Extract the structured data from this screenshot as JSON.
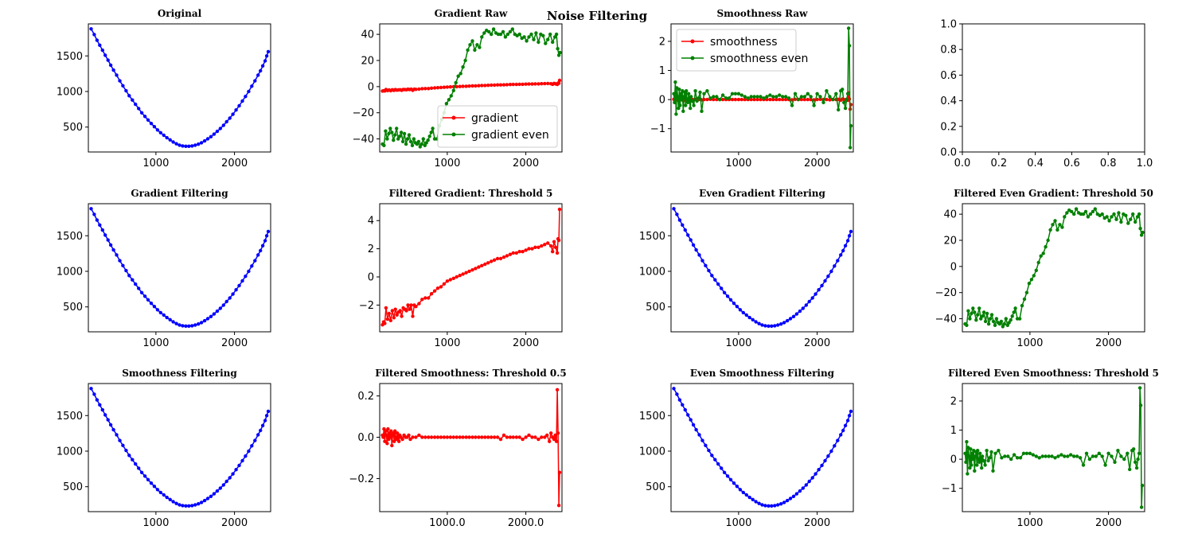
{
  "figure": {
    "title": "Noise Filtering"
  },
  "chart_data": [
    {
      "id": "original",
      "type": "line",
      "title": "Original",
      "xlim": [
        140,
        2460
      ],
      "ylim": [
        150,
        1950
      ],
      "xticks": [
        1000,
        2000
      ],
      "yticks": [
        500,
        1000,
        1500
      ],
      "series": [
        {
          "color": "#0000ff",
          "shape": "parabola"
        }
      ]
    },
    {
      "id": "gradient-raw",
      "type": "line",
      "title": "Gradient Raw",
      "xlim": [
        140,
        2460
      ],
      "ylim": [
        -50,
        48
      ],
      "xticks": [
        1000,
        2000
      ],
      "yticks": [
        -40,
        -20,
        0,
        20,
        40
      ],
      "legend": "lower-right",
      "series": [
        {
          "name": "gradient",
          "color": "#ff0000",
          "shape": "gradient"
        },
        {
          "name": "gradient even",
          "color": "#008000",
          "shape": "gradient_even"
        }
      ]
    },
    {
      "id": "smoothness-raw",
      "type": "line",
      "title": "Smoothness Raw",
      "xlim": [
        140,
        2460
      ],
      "ylim": [
        -1.8,
        2.6
      ],
      "xticks": [
        1000,
        2000
      ],
      "yticks": [
        -1,
        0,
        1,
        2
      ],
      "legend": "upper-left",
      "series": [
        {
          "name": "smoothness",
          "color": "#ff0000",
          "shape": "smooth_small"
        },
        {
          "name": "smoothness even",
          "color": "#008000",
          "shape": "smooth_even"
        }
      ]
    },
    {
      "id": "empty",
      "type": "line",
      "title": "",
      "xlim": [
        0,
        1
      ],
      "ylim": [
        0,
        1
      ],
      "xticks": [
        0.0,
        0.2,
        0.4,
        0.6,
        0.8,
        1.0
      ],
      "yticks": [
        0.0,
        0.2,
        0.4,
        0.6,
        0.8,
        1.0
      ],
      "tickFormat": "1",
      "series": []
    },
    {
      "id": "gradient-filtering",
      "type": "line",
      "title": "Gradient Filtering",
      "xlim": [
        140,
        2460
      ],
      "ylim": [
        150,
        1950
      ],
      "xticks": [
        1000,
        2000
      ],
      "yticks": [
        500,
        1000,
        1500
      ],
      "series": [
        {
          "color": "#0000ff",
          "shape": "parabola"
        }
      ]
    },
    {
      "id": "filtered-gradient",
      "type": "line",
      "title": "Filtered Gradient: Threshold 5",
      "xlim": [
        140,
        2460
      ],
      "ylim": [
        -3.9,
        5.2
      ],
      "xticks": [
        1000,
        2000
      ],
      "yticks": [
        -2,
        0,
        2,
        4
      ],
      "series": [
        {
          "color": "#ff0000",
          "shape": "gradient"
        }
      ]
    },
    {
      "id": "even-gradient-filtering",
      "type": "line",
      "title": "Even Gradient Filtering",
      "xlim": [
        140,
        2460
      ],
      "ylim": [
        150,
        1950
      ],
      "xticks": [
        1000,
        2000
      ],
      "yticks": [
        500,
        1000,
        1500
      ],
      "series": [
        {
          "color": "#0000ff",
          "shape": "parabola"
        }
      ]
    },
    {
      "id": "filtered-even-gradient",
      "type": "line",
      "title": "Filtered Even Gradient: Threshold 50",
      "xlim": [
        140,
        2460
      ],
      "ylim": [
        -50,
        48
      ],
      "xticks": [
        1000,
        2000
      ],
      "yticks": [
        -40,
        -20,
        0,
        20,
        40
      ],
      "series": [
        {
          "color": "#008000",
          "shape": "gradient_even"
        }
      ]
    },
    {
      "id": "smoothness-filtering",
      "type": "line",
      "title": "Smoothness Filtering",
      "xlim": [
        140,
        2460
      ],
      "ylim": [
        150,
        1950
      ],
      "xticks": [
        1000,
        2000
      ],
      "yticks": [
        500,
        1000,
        1500
      ],
      "series": [
        {
          "color": "#0000ff",
          "shape": "parabola"
        }
      ]
    },
    {
      "id": "filtered-smoothness",
      "type": "line",
      "title": "Filtered Smoothness: Threshold 0.5",
      "xlim": [
        140,
        2460
      ],
      "ylim": [
        -0.36,
        0.26
      ],
      "xticks": [
        1000,
        2000
      ],
      "yticks": [
        -0.2,
        0.0,
        0.2
      ],
      "tickFormat": "1",
      "series": [
        {
          "color": "#ff0000",
          "shape": "smooth_small"
        }
      ]
    },
    {
      "id": "even-smoothness-filtering",
      "type": "line",
      "title": "Even Smoothness Filtering",
      "xlim": [
        140,
        2460
      ],
      "ylim": [
        150,
        1950
      ],
      "xticks": [
        1000,
        2000
      ],
      "yticks": [
        500,
        1000,
        1500
      ],
      "series": [
        {
          "color": "#0000ff",
          "shape": "parabola"
        }
      ]
    },
    {
      "id": "filtered-even-smoothness",
      "type": "line",
      "title": "Filtered Even Smoothness: Threshold 5",
      "xlim": [
        140,
        2460
      ],
      "ylim": [
        -1.8,
        2.6
      ],
      "xticks": [
        1000,
        2000
      ],
      "yticks": [
        -1,
        0,
        1,
        2
      ],
      "series": [
        {
          "color": "#008000",
          "shape": "smooth_even"
        }
      ]
    }
  ],
  "series_points": {
    "parabola": {
      "x": [
        175,
        215,
        250,
        285,
        320,
        355,
        390,
        425,
        460,
        500,
        540,
        580,
        620,
        660,
        700,
        740,
        780,
        820,
        860,
        900,
        940,
        980,
        1020,
        1060,
        1100,
        1140,
        1180,
        1220,
        1260,
        1300,
        1340,
        1380,
        1420,
        1460,
        1500,
        1540,
        1580,
        1620,
        1660,
        1700,
        1740,
        1780,
        1820,
        1860,
        1900,
        1940,
        1980,
        2020,
        2060,
        2100,
        2140,
        2180,
        2220,
        2260,
        2300,
        2330,
        2360,
        2390,
        2410,
        2430
      ],
      "y": [
        1880,
        1800,
        1720,
        1650,
        1580,
        1510,
        1440,
        1370,
        1300,
        1230,
        1150,
        1080,
        1010,
        940,
        880,
        820,
        760,
        700,
        650,
        600,
        550,
        505,
        460,
        420,
        385,
        350,
        320,
        290,
        265,
        245,
        235,
        230,
        230,
        235,
        245,
        260,
        280,
        305,
        335,
        365,
        400,
        440,
        480,
        525,
        575,
        625,
        680,
        740,
        800,
        865,
        930,
        1000,
        1075,
        1150,
        1230,
        1290,
        1360,
        1430,
        1500,
        1560
      ]
    },
    "gradient": {
      "x": [
        175,
        190,
        205,
        220,
        240,
        260,
        280,
        300,
        320,
        340,
        360,
        380,
        400,
        420,
        440,
        460,
        480,
        500,
        520,
        540,
        560,
        580,
        600,
        640,
        680,
        720,
        760,
        800,
        840,
        880,
        920,
        960,
        1000,
        1040,
        1080,
        1120,
        1160,
        1200,
        1240,
        1280,
        1320,
        1360,
        1400,
        1440,
        1480,
        1520,
        1560,
        1600,
        1640,
        1680,
        1720,
        1760,
        1800,
        1840,
        1880,
        1920,
        1960,
        2000,
        2040,
        2080,
        2120,
        2160,
        2200,
        2240,
        2280,
        2320,
        2340,
        2360,
        2380,
        2400,
        2410,
        2420,
        2430
      ],
      "y": [
        -3.4,
        -3.2,
        -3.3,
        -2.2,
        -3.0,
        -2.6,
        -3.1,
        -2.4,
        -2.9,
        -2.3,
        -2.7,
        -2.5,
        -2.4,
        -2.8,
        -2.2,
        -2.3,
        -2.4,
        -2.0,
        -2.3,
        -2.0,
        -2.8,
        -2.0,
        -2.1,
        -1.9,
        -1.6,
        -1.5,
        -1.5,
        -1.2,
        -1.0,
        -0.8,
        -0.7,
        -0.5,
        -0.3,
        -0.2,
        -0.1,
        0.0,
        0.1,
        0.2,
        0.3,
        0.4,
        0.5,
        0.6,
        0.7,
        0.8,
        0.9,
        1.0,
        1.1,
        1.2,
        1.3,
        1.3,
        1.4,
        1.5,
        1.6,
        1.7,
        1.7,
        1.8,
        1.8,
        1.9,
        2.0,
        2.0,
        2.1,
        2.1,
        2.2,
        2.3,
        2.4,
        2.2,
        1.8,
        2.5,
        2.1,
        1.7,
        2.7,
        2.6,
        4.8
      ]
    },
    "gradient_even": {
      "x": [
        175,
        195,
        215,
        235,
        255,
        275,
        295,
        315,
        335,
        355,
        375,
        395,
        415,
        435,
        455,
        475,
        495,
        515,
        535,
        555,
        575,
        595,
        615,
        635,
        655,
        675,
        695,
        715,
        735,
        755,
        775,
        795,
        815,
        840,
        870,
        900,
        930,
        960,
        990,
        1020,
        1050,
        1080,
        1110,
        1140,
        1170,
        1200,
        1230,
        1260,
        1290,
        1320,
        1350,
        1380,
        1410,
        1440,
        1470,
        1500,
        1530,
        1560,
        1590,
        1620,
        1650,
        1680,
        1710,
        1740,
        1770,
        1800,
        1830,
        1860,
        1890,
        1920,
        1950,
        1980,
        2010,
        2040,
        2070,
        2100,
        2130,
        2160,
        2190,
        2220,
        2250,
        2280,
        2310,
        2340,
        2370,
        2390,
        2405,
        2420,
        2435
      ],
      "y": [
        -44,
        -45,
        -34,
        -40,
        -36,
        -32,
        -35,
        -41,
        -37,
        -32,
        -40,
        -38,
        -35,
        -42,
        -36,
        -44,
        -40,
        -37,
        -42,
        -45,
        -40,
        -43,
        -44,
        -42,
        -46,
        -44,
        -40,
        -45,
        -43,
        -41,
        -38,
        -35,
        -32,
        -40,
        -40,
        -30,
        -25,
        -20,
        -13,
        -10,
        -7,
        -3,
        3,
        8,
        10,
        15,
        20,
        28,
        32,
        35,
        28,
        32,
        30,
        38,
        41,
        43,
        42,
        40,
        44,
        41,
        40,
        40,
        42,
        38,
        40,
        42,
        44,
        40,
        39,
        40,
        37,
        38,
        35,
        38,
        40,
        36,
        41,
        34,
        40,
        39,
        33,
        36,
        40,
        34,
        38,
        40,
        29,
        24,
        26
      ]
    },
    "smooth_small": {
      "x": [
        175,
        185,
        195,
        205,
        215,
        225,
        235,
        245,
        255,
        265,
        275,
        285,
        295,
        305,
        315,
        325,
        335,
        345,
        355,
        365,
        375,
        385,
        395,
        410,
        430,
        450,
        470,
        490,
        510,
        530,
        560,
        600,
        640,
        680,
        720,
        760,
        800,
        840,
        880,
        920,
        960,
        1000,
        1040,
        1080,
        1120,
        1160,
        1200,
        1240,
        1280,
        1320,
        1360,
        1400,
        1440,
        1480,
        1520,
        1560,
        1600,
        1640,
        1680,
        1720,
        1760,
        1800,
        1840,
        1880,
        1920,
        1960,
        2000,
        2040,
        2080,
        2120,
        2160,
        2200,
        2240,
        2270,
        2300,
        2320,
        2340,
        2360,
        2375,
        2390,
        2400,
        2410,
        2420,
        2430
      ],
      "y": [
        0.01,
        0.0,
        0.04,
        -0.02,
        0.03,
        0.01,
        -0.03,
        0.04,
        -0.01,
        0.02,
        0.0,
        0.03,
        -0.04,
        0.01,
        0.02,
        -0.02,
        0.03,
        0.0,
        -0.01,
        0.02,
        0.0,
        -0.02,
        0.01,
        0.0,
        -0.01,
        0.01,
        0.0,
        0.0,
        0.01,
        -0.01,
        0.0,
        0.0,
        0.01,
        0.0,
        0.0,
        0.0,
        0.0,
        0.0,
        0.0,
        0.0,
        0.0,
        0.0,
        0.0,
        0.0,
        0.0,
        0.0,
        0.0,
        0.0,
        0.0,
        0.0,
        0.0,
        0.0,
        0.0,
        0.0,
        0.0,
        0.0,
        0.0,
        0.0,
        -0.01,
        0.01,
        0.0,
        0.0,
        0.0,
        0.0,
        0.0,
        -0.01,
        0.0,
        0.01,
        0.0,
        0.0,
        -0.01,
        0.0,
        0.0,
        0.01,
        -0.02,
        0.02,
        0.0,
        -0.01,
        0.01,
        -0.02,
        0.23,
        0.02,
        -0.33,
        -0.17
      ]
    },
    "smooth_even": {
      "x": [
        175,
        185,
        195,
        205,
        215,
        225,
        235,
        245,
        255,
        265,
        275,
        285,
        295,
        305,
        315,
        325,
        335,
        345,
        355,
        365,
        375,
        385,
        395,
        410,
        430,
        450,
        470,
        490,
        510,
        530,
        560,
        600,
        640,
        680,
        720,
        760,
        800,
        840,
        880,
        920,
        960,
        1000,
        1040,
        1080,
        1120,
        1160,
        1200,
        1240,
        1280,
        1320,
        1360,
        1400,
        1440,
        1480,
        1520,
        1560,
        1600,
        1640,
        1680,
        1720,
        1760,
        1800,
        1840,
        1880,
        1920,
        1960,
        2000,
        2040,
        2080,
        2120,
        2160,
        2200,
        2240,
        2270,
        2300,
        2320,
        2340,
        2360,
        2375,
        2390,
        2400,
        2410,
        2420,
        2430
      ],
      "y": [
        0.2,
        -0.1,
        0.6,
        -0.5,
        0.4,
        0.1,
        -0.3,
        0.35,
        -0.2,
        0.2,
        0.0,
        0.3,
        -0.4,
        0.1,
        0.25,
        -0.2,
        0.3,
        0.0,
        -0.1,
        0.2,
        0.0,
        -0.3,
        0.1,
        -0.05,
        -0.2,
        0.3,
        -0.05,
        0.05,
        0.25,
        -0.4,
        0.2,
        0.3,
        0.05,
        0.1,
        0.1,
        0.0,
        0.15,
        0.05,
        0.05,
        0.2,
        0.2,
        0.2,
        0.15,
        0.1,
        0.05,
        0.1,
        0.1,
        0.1,
        0.1,
        0.05,
        0.1,
        0.15,
        0.1,
        0.1,
        0.15,
        0.1,
        0.1,
        0.05,
        -0.2,
        0.2,
        0.0,
        0.1,
        0.1,
        0.2,
        0.1,
        -0.2,
        0.2,
        0.1,
        -0.1,
        0.3,
        0.1,
        0.0,
        0.2,
        -0.35,
        0.3,
        0.35,
        -0.1,
        -0.3,
        0.0,
        0.2,
        2.45,
        1.85,
        -1.65,
        -0.9
      ]
    }
  }
}
